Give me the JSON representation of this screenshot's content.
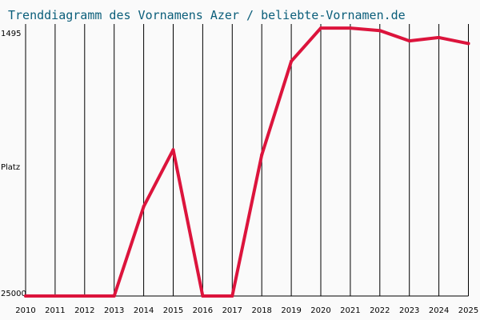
{
  "chart_data": {
    "type": "line",
    "title": "Trenddiagramm des Vornamens Azer / beliebte-Vornamen.de",
    "ylabel": "Platz",
    "y_axis_labels": {
      "top": "1495",
      "bottom": "25000"
    },
    "y_scale": "log",
    "y_inverted": true,
    "ylim": [
      1495,
      25000
    ],
    "x": [
      "2010",
      "2011",
      "2012",
      "2013",
      "2014",
      "2015",
      "2016",
      "2017",
      "2018",
      "2019",
      "2020",
      "2021",
      "2022",
      "2023",
      "2024",
      "2025"
    ],
    "series": [
      {
        "values": [
          25000,
          25000,
          25000,
          25000,
          9900,
          5500,
          25000,
          25000,
          5800,
          2200,
          1560,
          1560,
          1600,
          1780,
          1720,
          1830
        ]
      }
    ],
    "line_color": "#dc143c",
    "grid_color": "#000000",
    "background_color": "#fafafa",
    "title_color": "#0b5e7a",
    "grid": true
  }
}
